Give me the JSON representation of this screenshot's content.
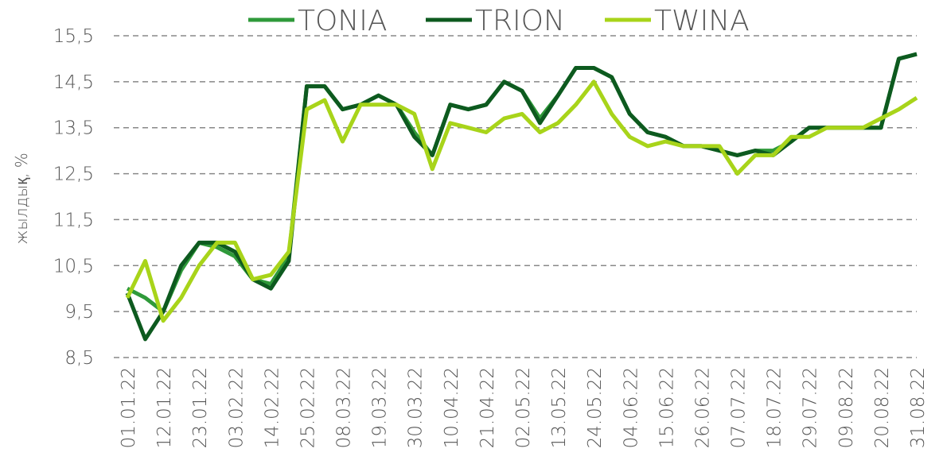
{
  "chart_data": {
    "type": "line",
    "y_label": "жылдық, %",
    "categories": [
      "01.01.22",
      null,
      "12.01.22",
      null,
      "23.01.22",
      null,
      "03.02.22",
      null,
      "14.02.22",
      null,
      "25.02.22",
      null,
      "08.03.22",
      null,
      "19.03.22",
      null,
      "30.03.22",
      null,
      "10.04.22",
      null,
      "21.04.22",
      null,
      "02.05.22",
      null,
      "13.05.22",
      null,
      "24.05.22",
      null,
      "04.06.22",
      null,
      "15.06.22",
      null,
      "26.06.22",
      null,
      "07.07.22",
      null,
      "18.07.22",
      null,
      "29.07.22",
      null,
      "09.08.22",
      null,
      "20.08.22",
      null,
      "31.08.22"
    ],
    "series": [
      {
        "name": "TONIA",
        "color": "#2f9a3a",
        "values": [
          10.0,
          9.8,
          9.5,
          10.4,
          11.0,
          10.9,
          10.7,
          10.2,
          10.1,
          10.7,
          14.4,
          14.4,
          13.9,
          14.0,
          14.2,
          14.0,
          13.4,
          12.9,
          14.0,
          13.9,
          14.0,
          14.5,
          14.3,
          13.7,
          14.2,
          14.8,
          14.8,
          14.6,
          13.8,
          13.4,
          13.3,
          13.1,
          13.1,
          13.0,
          12.9,
          13.0,
          13.0,
          13.2,
          13.5,
          13.5,
          13.5,
          13.5,
          13.5,
          15.0,
          15.1
        ]
      },
      {
        "name": "TRION",
        "color": "#0d5a1f",
        "values": [
          9.9,
          8.9,
          9.5,
          10.5,
          11.0,
          11.0,
          10.8,
          10.2,
          10.0,
          10.6,
          14.4,
          14.4,
          13.9,
          14.0,
          14.2,
          14.0,
          13.3,
          12.9,
          14.0,
          13.9,
          14.0,
          14.5,
          14.3,
          13.6,
          14.2,
          14.8,
          14.8,
          14.6,
          13.8,
          13.4,
          13.3,
          13.1,
          13.1,
          13.0,
          12.9,
          13.0,
          12.9,
          13.2,
          13.5,
          13.5,
          13.5,
          13.5,
          13.5,
          15.0,
          15.1
        ]
      },
      {
        "name": "TWINA",
        "color": "#a8d41a",
        "values": [
          9.8,
          10.6,
          9.3,
          9.8,
          10.5,
          11.0,
          11.0,
          10.2,
          10.3,
          10.8,
          13.9,
          14.1,
          13.2,
          14.0,
          14.0,
          14.0,
          13.8,
          12.6,
          13.6,
          13.5,
          13.4,
          13.7,
          13.8,
          13.4,
          13.6,
          14.0,
          14.5,
          13.8,
          13.3,
          13.1,
          13.2,
          13.1,
          13.1,
          13.1,
          12.5,
          12.9,
          12.9,
          13.3,
          13.3,
          13.5,
          13.5,
          13.5,
          13.7,
          13.9,
          14.15
        ]
      }
    ],
    "ylim": [
      8.5,
      15.5
    ],
    "yticks": [
      {
        "value": 8.5,
        "label": "8,5"
      },
      {
        "value": 9.5,
        "label": "9,5"
      },
      {
        "value": 10.5,
        "label": "10,5"
      },
      {
        "value": 11.5,
        "label": "11,5"
      },
      {
        "value": 12.5,
        "label": "12,5"
      },
      {
        "value": 13.5,
        "label": "13,5"
      },
      {
        "value": 14.5,
        "label": "14,5"
      },
      {
        "value": 15.5,
        "label": "15,5"
      }
    ],
    "grid": true,
    "legend": "top"
  }
}
